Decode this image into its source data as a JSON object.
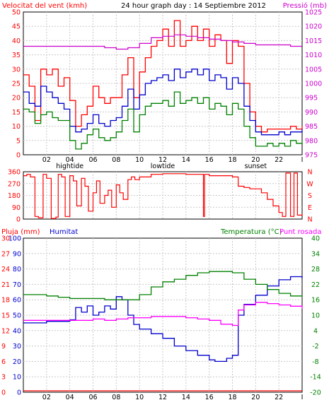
{
  "header": {
    "left_label": "Velocitat del vent (kmh)",
    "title": "24 hour graph day : 14 Septiembre 2012",
    "right_label": "Pressió (mb)"
  },
  "panel3_header": {
    "rain_label": "Pluja (mm)",
    "humidity_label": "Humitat",
    "temp_label": "Temperatura (°C)",
    "dew_label": "Punt rosada"
  },
  "colors": {
    "wind_gust": "#ff0000",
    "wind_speed": "#0000cc",
    "wind_avg": "#008000",
    "pressure": "#cc00cc",
    "direction": "#ff0000",
    "humidity": "#0000cc",
    "temperature": "#008000",
    "dew_point": "#ff00ff",
    "rain": "#ff0000"
  },
  "x_axis": {
    "hour_labels": [
      "02",
      "04",
      "06",
      "08",
      "10",
      "12",
      "14",
      "16",
      "18",
      "20",
      "22"
    ],
    "hour_values": [
      2,
      4,
      6,
      8,
      10,
      12,
      14,
      16,
      18,
      20,
      22
    ],
    "events": [
      {
        "label": "hightide",
        "hour": 4
      },
      {
        "label": "lowtide",
        "hour": 12
      },
      {
        "label": "sunset",
        "hour": 20
      }
    ],
    "end_label": "I"
  },
  "chart_data": [
    {
      "type": "line",
      "name": "wind-pressure",
      "x_range": [
        0,
        24
      ],
      "ylim_left": [
        0,
        50
      ],
      "yticks_left": [
        0,
        5,
        10,
        15,
        20,
        25,
        30,
        35,
        40,
        45,
        50
      ],
      "ylim_right": [
        975,
        1025
      ],
      "yticks_right": [
        975,
        980,
        985,
        990,
        995,
        1000,
        1005,
        1010,
        1015,
        1020,
        1025
      ],
      "grid": true,
      "series": [
        {
          "key": "gust",
          "axis": "left",
          "color": "#ff0000",
          "x": [
            0,
            0.5,
            1,
            1.5,
            2,
            2.5,
            3,
            3.5,
            4,
            4.5,
            5,
            5.5,
            6,
            6.5,
            7,
            7.5,
            8,
            8.5,
            9,
            9.5,
            10,
            10.5,
            11,
            11.5,
            12,
            12.5,
            13,
            13.5,
            14,
            14.5,
            15,
            15.5,
            16,
            16.5,
            17,
            17.5,
            18,
            18.5,
            19,
            19.5,
            20,
            20.5,
            21,
            21.5,
            22,
            22.5,
            23,
            23.5,
            24
          ],
          "y": [
            28,
            24,
            12,
            30,
            28,
            30,
            24,
            27,
            19,
            10,
            14,
            17,
            24,
            20,
            18,
            20,
            20,
            28,
            34,
            20,
            29,
            34,
            38,
            40,
            44,
            38,
            47,
            38,
            40,
            45,
            40,
            44,
            38,
            42,
            40,
            32,
            40,
            38,
            25,
            15,
            10,
            8,
            9,
            9,
            9,
            9,
            10,
            9,
            10
          ]
        },
        {
          "key": "speed",
          "axis": "left",
          "color": "#0000cc",
          "x": [
            0,
            0.5,
            1,
            1.5,
            2,
            2.5,
            3,
            3.5,
            4,
            4.5,
            5,
            5.5,
            6,
            6.5,
            7,
            7.5,
            8,
            8.5,
            9,
            9.5,
            10,
            10.5,
            11,
            11.5,
            12,
            12.5,
            13,
            13.5,
            14,
            14.5,
            15,
            15.5,
            16,
            16.5,
            17,
            17.5,
            18,
            18.5,
            19,
            19.5,
            20,
            20.5,
            21,
            21.5,
            22,
            22.5,
            23,
            23.5,
            24
          ],
          "y": [
            22,
            18,
            17,
            24,
            22,
            20,
            18,
            16,
            10,
            8,
            9,
            11,
            14,
            11,
            10,
            12,
            13,
            17,
            23,
            16,
            21,
            25,
            26,
            27,
            28,
            26,
            30,
            27,
            29,
            30,
            28,
            30,
            26,
            28,
            27,
            23,
            27,
            25,
            17,
            12,
            8,
            7,
            7,
            7,
            8,
            7,
            8,
            8,
            9
          ]
        },
        {
          "key": "avg",
          "axis": "left",
          "color": "#008000",
          "x": [
            0,
            0.5,
            1,
            1.5,
            2,
            2.5,
            3,
            3.5,
            4,
            4.5,
            5,
            5.5,
            6,
            6.5,
            7,
            7.5,
            8,
            8.5,
            9,
            9.5,
            10,
            10.5,
            11,
            11.5,
            12,
            12.5,
            13,
            13.5,
            14,
            14.5,
            15,
            15.5,
            16,
            16.5,
            17,
            17.5,
            18,
            18.5,
            19,
            19.5,
            20,
            20.5,
            21,
            21.5,
            22,
            22.5,
            23,
            23.5,
            24
          ],
          "y": [
            16,
            15,
            11,
            14,
            15,
            13,
            12,
            12,
            5,
            2,
            4,
            7,
            9,
            6,
            5,
            6,
            8,
            12,
            16,
            8,
            14,
            17,
            18,
            18,
            19,
            17,
            22,
            18,
            19,
            20,
            18,
            20,
            16,
            18,
            17,
            14,
            18,
            16,
            10,
            6,
            3,
            3,
            4,
            3,
            4,
            3,
            5,
            4,
            5
          ]
        },
        {
          "key": "pressure",
          "axis": "right",
          "color": "#cc00cc",
          "x": [
            0,
            2,
            4,
            6,
            7,
            8,
            9,
            10,
            11,
            12,
            13,
            14,
            15,
            16,
            17,
            18,
            19,
            20,
            21,
            22,
            23,
            24
          ],
          "y": [
            1013,
            1013,
            1013,
            1013,
            1012.5,
            1012,
            1012.5,
            1014,
            1016,
            1016.5,
            1017,
            1016.5,
            1016,
            1015.5,
            1015,
            1014.5,
            1014,
            1013.5,
            1013.5,
            1013.5,
            1013,
            1013
          ]
        }
      ]
    },
    {
      "type": "line",
      "name": "wind-direction",
      "x_range": [
        0,
        24
      ],
      "ylim": [
        0,
        360
      ],
      "yticks": [
        0,
        90,
        180,
        270,
        360
      ],
      "ytick_labels_left": [
        "0",
        "90",
        "180",
        "270",
        "360"
      ],
      "ytick_labels_right": [
        "N",
        "E",
        "S",
        "W",
        "N"
      ],
      "grid": true,
      "series": [
        {
          "key": "direction",
          "color": "#ff0000",
          "x": [
            0,
            0.3,
            0.6,
            1,
            1.3,
            1.7,
            2,
            2.4,
            2.8,
            3,
            3.3,
            3.6,
            4,
            4.3,
            4.6,
            5,
            5.3,
            5.6,
            6,
            6.3,
            6.6,
            7,
            7.3,
            7.6,
            8,
            8.3,
            8.6,
            9,
            9.3,
            9.6,
            10,
            11,
            12,
            13,
            14,
            15,
            15.5,
            15.6,
            16,
            17,
            18,
            18.5,
            19,
            19.5,
            20,
            20.5,
            21,
            21.5,
            22,
            22.3,
            22.6,
            23,
            23.3,
            23.6,
            24
          ],
          "y": [
            330,
            340,
            320,
            20,
            10,
            340,
            310,
            5,
            15,
            340,
            320,
            20,
            330,
            290,
            100,
            310,
            250,
            60,
            200,
            290,
            120,
            180,
            220,
            90,
            260,
            200,
            150,
            300,
            320,
            300,
            320,
            340,
            345,
            345,
            340,
            340,
            20,
            340,
            330,
            330,
            320,
            250,
            240,
            230,
            230,
            200,
            150,
            100,
            50,
            20,
            350,
            20,
            350,
            30,
            40
          ]
        }
      ]
    },
    {
      "type": "line",
      "name": "humidity-temperature",
      "x_range": [
        0,
        24
      ],
      "ylim_left": [
        0,
        100
      ],
      "yticks_left": [
        0,
        10,
        20,
        30,
        40,
        50,
        60,
        70,
        80,
        90,
        100
      ],
      "ytick_labels_rain": [
        "0",
        "3",
        "6",
        "9",
        "12",
        "15",
        "18",
        "21",
        "24",
        "27",
        "30"
      ],
      "ytick_labels_humidity": [
        "0",
        "10",
        "20",
        "30",
        "40",
        "50",
        "60",
        "70",
        "80",
        "90",
        "100"
      ],
      "ylim_right": [
        -20,
        40
      ],
      "yticks_right": [
        -20,
        -14,
        -8,
        -2,
        4,
        10,
        16,
        22,
        28,
        34,
        40
      ],
      "grid": true,
      "series": [
        {
          "key": "humidity",
          "axis": "left",
          "color": "#0000cc",
          "x": [
            0,
            1,
            2,
            3,
            4,
            4.5,
            5,
            5.5,
            6,
            6.5,
            7,
            7.5,
            8,
            8.5,
            9,
            9.5,
            10,
            11,
            12,
            13,
            14,
            15,
            16,
            16.5,
            17,
            17.5,
            18,
            18.5,
            19,
            20,
            21,
            22,
            23,
            24
          ],
          "y": [
            45,
            45,
            46,
            46,
            47,
            55,
            52,
            56,
            50,
            52,
            56,
            54,
            62,
            60,
            50,
            44,
            41,
            38,
            35,
            30,
            27,
            24,
            21,
            20,
            20,
            22,
            24,
            50,
            57,
            63,
            69,
            73,
            75,
            74
          ]
        },
        {
          "key": "temperature",
          "axis": "right",
          "color": "#008000",
          "x": [
            0,
            1,
            2,
            3,
            4,
            5,
            6,
            7,
            8,
            9,
            10,
            11,
            12,
            13,
            14,
            15,
            16,
            17,
            18,
            19,
            20,
            21,
            22,
            23,
            24
          ],
          "y": [
            18,
            18,
            17.5,
            17,
            16.5,
            16.5,
            16.5,
            16,
            16,
            16,
            18,
            21,
            23,
            24,
            25.5,
            26.5,
            27,
            27,
            26.5,
            24,
            22,
            20,
            18.5,
            17.5,
            17
          ]
        },
        {
          "key": "dew_point",
          "axis": "right",
          "color": "#ff00ff",
          "x": [
            0,
            1,
            2,
            3,
            4,
            5,
            6,
            7,
            8,
            9,
            10,
            11,
            12,
            13,
            14,
            15,
            16,
            17,
            18,
            18.5,
            19,
            20,
            21,
            22,
            23,
            24
          ],
          "y": [
            8,
            8,
            8,
            8,
            8,
            8,
            8.5,
            8,
            8.5,
            9,
            9,
            9.5,
            9.5,
            9.5,
            9,
            8.5,
            8,
            6.5,
            6,
            12,
            14,
            15,
            14.5,
            14,
            13.5,
            12.5
          ]
        },
        {
          "key": "rain",
          "axis": "left",
          "color": "#ff0000",
          "x": [
            0,
            24
          ],
          "y": [
            0,
            0
          ]
        }
      ]
    }
  ]
}
